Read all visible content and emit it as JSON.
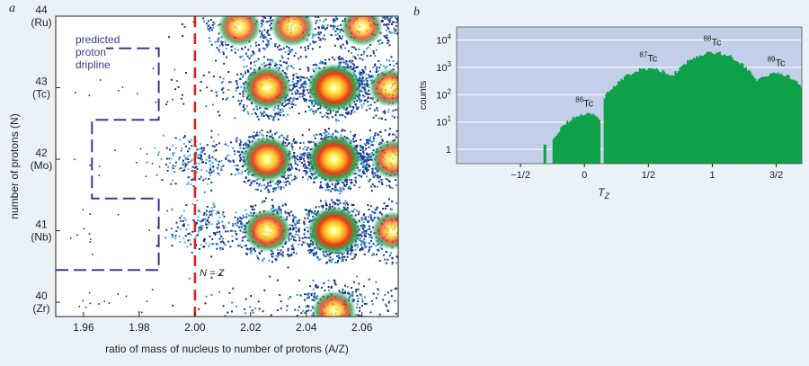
{
  "chart_data": [
    {
      "panel": "a",
      "type": "heatmap",
      "xlabel": "ratio of mass of nucleus to number of protons (A/Z)",
      "ylabel": "number of protons (N)",
      "xlim": [
        1.95,
        2.073
      ],
      "ylim": [
        39.8,
        44.0
      ],
      "xticks": [
        "1.96",
        "1.98",
        "2.00",
        "2.02",
        "2.04",
        "2.06"
      ],
      "yticks": [
        {
          "value": 44,
          "label": "44",
          "element": "(Ru)"
        },
        {
          "value": 43,
          "label": "43",
          "element": "(Tc)"
        },
        {
          "value": 42,
          "label": "42",
          "element": "(Mo)"
        },
        {
          "value": 41,
          "label": "41",
          "element": "(Nb)"
        },
        {
          "value": 40,
          "label": "40",
          "element": "(Zr)"
        }
      ],
      "annotations": {
        "dripline_label": [
          "predicted",
          "proton",
          "dripline"
        ],
        "nz_line_label": "N = Z",
        "nz_line_x": 2.0
      },
      "dripline": [
        [
          1.95,
          40.45
        ],
        [
          1.987,
          40.45
        ],
        [
          1.987,
          41.45
        ],
        [
          1.963,
          41.45
        ],
        [
          1.963,
          42.55
        ],
        [
          1.987,
          42.55
        ],
        [
          1.987,
          43.55
        ],
        [
          1.968,
          43.55
        ]
      ],
      "clusters": [
        {
          "x": 2.016,
          "y": 43.85,
          "i": 0.5
        },
        {
          "x": 2.035,
          "y": 43.85,
          "i": 0.5
        },
        {
          "x": 2.06,
          "y": 43.85,
          "i": 0.45
        },
        {
          "x": 2.026,
          "y": 43.0,
          "i": 0.75
        },
        {
          "x": 2.05,
          "y": 43.0,
          "i": 1.0
        },
        {
          "x": 2.07,
          "y": 43.0,
          "i": 0.45
        },
        {
          "x": 2.026,
          "y": 42.0,
          "i": 0.85
        },
        {
          "x": 2.05,
          "y": 42.0,
          "i": 1.0
        },
        {
          "x": 2.071,
          "y": 42.0,
          "i": 0.5
        },
        {
          "x": 2.026,
          "y": 41.0,
          "i": 0.7
        },
        {
          "x": 2.05,
          "y": 41.0,
          "i": 1.0
        },
        {
          "x": 2.071,
          "y": 41.0,
          "i": 0.45
        },
        {
          "x": 2.05,
          "y": 39.88,
          "i": 0.55
        }
      ],
      "light_clusters": [
        {
          "x": 2.0,
          "y": 42.0
        },
        {
          "x": 2.003,
          "y": 41.1
        }
      ]
    },
    {
      "panel": "b",
      "type": "bar",
      "xlabel": "T",
      "xlabel_sub": "Z",
      "ylabel": "counts",
      "yscale": "log",
      "ylim": [
        0.3,
        30000
      ],
      "xlim": [
        -1.0,
        1.7
      ],
      "xticks": [
        {
          "value": -0.5,
          "label": "−1/2"
        },
        {
          "value": 0,
          "label": "0"
        },
        {
          "value": 0.5,
          "label": "1/2"
        },
        {
          "value": 1,
          "label": "1"
        },
        {
          "value": 1.5,
          "label": "3/2"
        }
      ],
      "yticks": [
        {
          "value": 10000,
          "base": "10",
          "exp": "4"
        },
        {
          "value": 1000,
          "base": "10",
          "exp": "3"
        },
        {
          "value": 100,
          "base": "10",
          "exp": "2"
        },
        {
          "value": 10,
          "base": "10",
          "exp": "1"
        },
        {
          "value": 1,
          "base": "1",
          "exp": ""
        }
      ],
      "series": [
        {
          "sup": "86",
          "name": "Tc",
          "center": 0.0,
          "peak": 20,
          "width": 0.12,
          "from": -0.25,
          "to": 0.12
        },
        {
          "sup": "87",
          "name": "Tc",
          "center": 0.5,
          "peak": 900,
          "width": 0.16,
          "from": 0.15,
          "to": 0.85
        },
        {
          "sup": "88",
          "name": "Tc",
          "center": 1.0,
          "peak": 3500,
          "width": 0.16,
          "from": 0.62,
          "to": 1.33
        },
        {
          "sup": "89",
          "name": "Tc",
          "center": 1.5,
          "peak": 600,
          "width": 0.13,
          "from": 1.22,
          "to": 1.7
        }
      ],
      "isolated_bars": [
        {
          "x": -0.32,
          "value": 1.5
        }
      ],
      "colors": {
        "bars": "#0ea14a",
        "background": "#c3cfe8",
        "grid": "#ffffff"
      }
    }
  ],
  "panels": {
    "a": "a",
    "b": "b"
  }
}
